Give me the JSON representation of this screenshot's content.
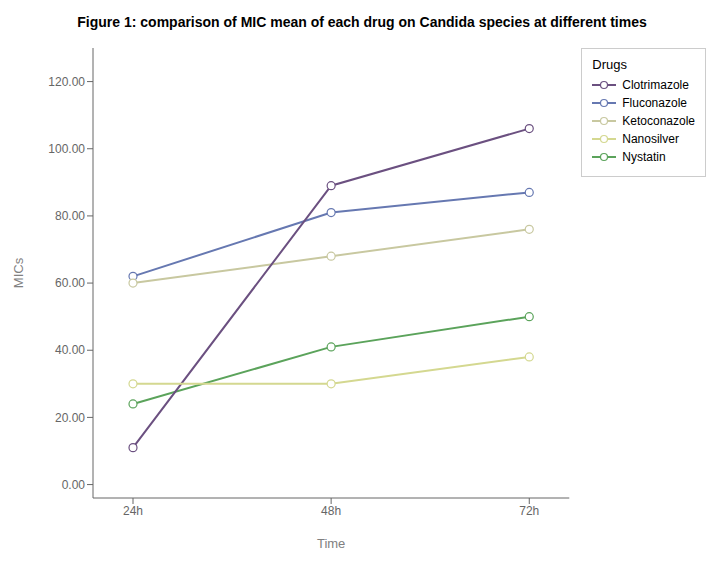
{
  "chart_data": {
    "type": "line",
    "title": "Figure 1: comparison of MIC mean of each drug on Candida species at different times",
    "x_label": "Time",
    "y_label": "MICs",
    "categories": [
      "24h",
      "48h",
      "72h"
    ],
    "series": [
      {
        "name": "Fluconazole",
        "color": "#6678B1",
        "values": [
          62,
          81,
          87
        ]
      },
      {
        "name": "Nystatin",
        "color": "#5BA35B",
        "values": [
          24,
          41,
          50
        ]
      },
      {
        "name": "Ketoconazole",
        "color": "#C8C8A0",
        "values": [
          60,
          68,
          76
        ]
      },
      {
        "name": "Clotrimazole",
        "color": "#6B5080",
        "values": [
          11,
          89,
          106
        ]
      },
      {
        "name": "Nanosilver",
        "color": "#D4D890",
        "values": [
          30,
          30,
          38
        ]
      }
    ],
    "ylim": [
      -4,
      130
    ],
    "yticks": [
      {
        "value": 0,
        "label": "0.00"
      },
      {
        "value": 20,
        "label": "20.00"
      },
      {
        "value": 40,
        "label": "40.00"
      },
      {
        "value": 60,
        "label": "60.00"
      },
      {
        "value": 80,
        "label": "80.00"
      },
      {
        "value": 100,
        "label": "100.00"
      },
      {
        "value": 120,
        "label": "120.00"
      }
    ],
    "grid": false,
    "legend": "right",
    "legend_title": "Drugs",
    "marker": "circle",
    "line_style": "solid"
  }
}
